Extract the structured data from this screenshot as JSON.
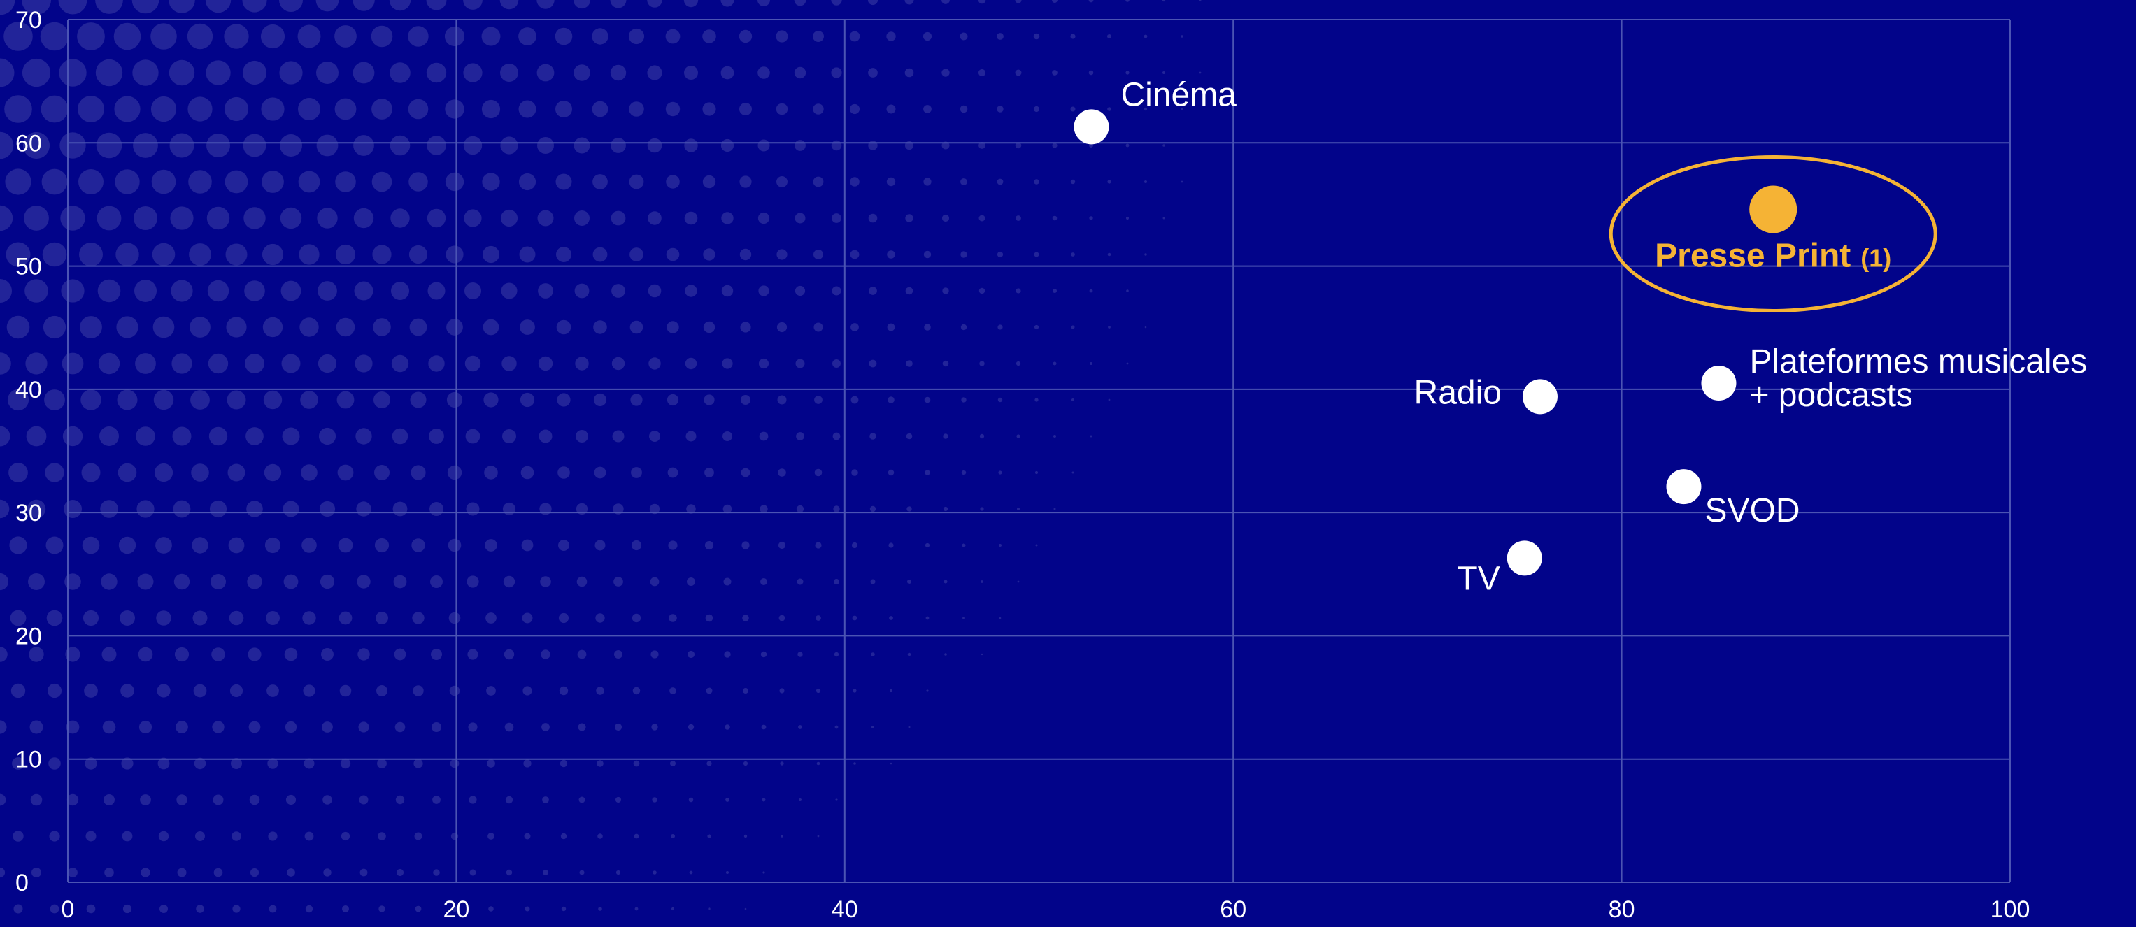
{
  "chart_data": {
    "type": "scatter",
    "title": "",
    "xlabel": "",
    "ylabel": "",
    "xlim": [
      0,
      100
    ],
    "ylim": [
      0,
      70
    ],
    "x_ticks": [
      "0",
      "20",
      "40",
      "60",
      "80",
      "100"
    ],
    "y_ticks": [
      "0",
      "10",
      "20",
      "30",
      "40",
      "50",
      "60",
      "70"
    ],
    "grid": true,
    "points": [
      {
        "label": "Cinéma",
        "x": 52.7,
        "y": 61.3,
        "color": "#ffffff"
      },
      {
        "label": "Radio",
        "x": 75.8,
        "y": 39.4,
        "color": "#ffffff"
      },
      {
        "label": "Plateformes musicales\n+ podcasts",
        "x": 85.0,
        "y": 40.5,
        "color": "#ffffff"
      },
      {
        "label": "SVOD",
        "x": 83.2,
        "y": 32.1,
        "color": "#ffffff"
      },
      {
        "label": "TV",
        "x": 75.0,
        "y": 26.3,
        "color": "#ffffff"
      },
      {
        "label": "Presse Print",
        "note": "(1)",
        "x": 87.8,
        "y": 54.6,
        "color": "#f5b335",
        "highlight": true
      }
    ],
    "colors": {
      "background": "#02048a",
      "grid": "#4b54b3",
      "highlight": "#f5b335",
      "point": "#ffffff"
    }
  }
}
